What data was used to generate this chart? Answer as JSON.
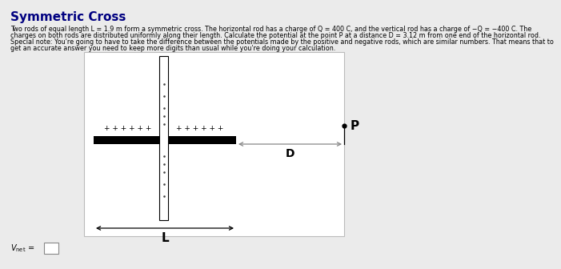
{
  "title": "Symmetric Cross",
  "title_color": "#000080",
  "title_fontsize": 11,
  "line1": "Two rods of equal length L = 1.9 m form a symmetric cross. The horizontal rod has a charge of Q = 400 C, and the vertical rod has a charge of −Q = −400 C. The",
  "line2": "charges on both rods are distributed uniformly along their length. Calculate the potential at the point P at a distance D = 3.12 m from one end of the horizontal rod.",
  "line3": "Special note: You're going to have to take the difference between the potentials made by the positive and negative rods, which are similar numbers. That means that to",
  "line4": "get an accurate answer you need to keep more digits than usual while you're doing your calculation.",
  "body_fontsize": 5.8,
  "bg_color": "#ebebeb",
  "diagram_bg": "#ffffff",
  "plus_signs_left": "+ + + + + +",
  "plus_signs_right": "+ + + + + +",
  "label_L": "L",
  "label_D": "D",
  "label_P": "P",
  "rod_color": "#000000",
  "vertical_rod_color": "#ffffff",
  "vertical_rod_border": "#000000",
  "gray_color": "#888888",
  "arrow_color": "#666666"
}
